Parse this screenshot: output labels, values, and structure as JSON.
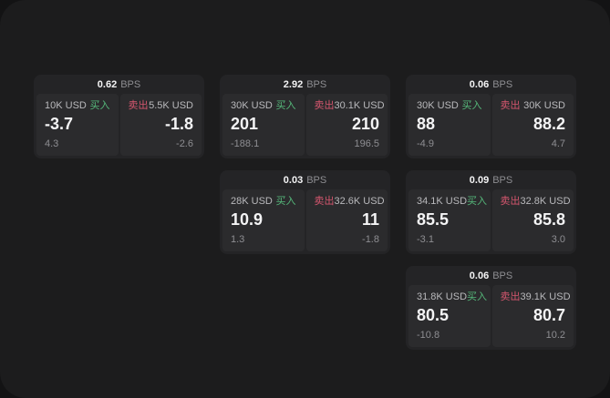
{
  "page": {
    "bps_unit": "BPS",
    "buy_label": "买入",
    "sell_label": "卖出"
  },
  "colors": {
    "outer_background": "#131314",
    "panel_background": "#1c1c1d",
    "card_background": "#242426",
    "tile_background": "#2b2b2d",
    "buy_green": "#55b87a",
    "sell_red": "#d4566e",
    "value_white": "#f4f4f5",
    "label_gray": "#b9b9bc",
    "muted_gray": "#8e8e92"
  },
  "cards": [
    {
      "bps": "0.62",
      "col": 1,
      "row": 1,
      "buy": {
        "amount": "10K USD",
        "value": "-3.7",
        "sub": "4.3"
      },
      "sell": {
        "amount": "5.5K USD",
        "value": "-1.8",
        "sub": "-2.6"
      }
    },
    {
      "bps": "2.92",
      "col": 2,
      "row": 1,
      "buy": {
        "amount": "30K USD",
        "value": "201",
        "sub": "-188.1"
      },
      "sell": {
        "amount": "30.1K USD",
        "value": "210",
        "sub": "196.5"
      }
    },
    {
      "bps": "0.06",
      "col": 3,
      "row": 1,
      "buy": {
        "amount": "30K USD",
        "value": "88",
        "sub": "-4.9"
      },
      "sell": {
        "amount": "30K USD",
        "value": "88.2",
        "sub": "4.7"
      }
    },
    {
      "bps": "0.03",
      "col": 2,
      "row": 2,
      "buy": {
        "amount": "28K USD",
        "value": "10.9",
        "sub": "1.3"
      },
      "sell": {
        "amount": "32.6K USD",
        "value": "11",
        "sub": "-1.8"
      }
    },
    {
      "bps": "0.09",
      "col": 3,
      "row": 2,
      "buy": {
        "amount": "34.1K USD",
        "value": "85.5",
        "sub": "-3.1"
      },
      "sell": {
        "amount": "32.8K USD",
        "value": "85.8",
        "sub": "3.0"
      }
    },
    {
      "bps": "0.06",
      "col": 3,
      "row": 3,
      "buy": {
        "amount": "31.8K USD",
        "value": "80.5",
        "sub": "-10.8"
      },
      "sell": {
        "amount": "39.1K USD",
        "value": "80.7",
        "sub": "10.2"
      }
    }
  ]
}
